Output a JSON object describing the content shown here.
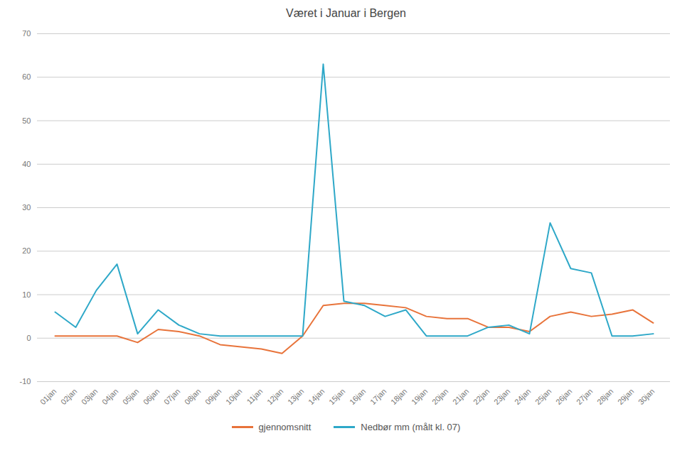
{
  "chart_data": {
    "type": "line",
    "title": "Været i Januar i Bergen",
    "categories": [
      "01jan",
      "02jan",
      "03jan",
      "04jan",
      "05jan",
      "06jan",
      "07jan",
      "08jan",
      "09jan",
      "10jan",
      "11jan",
      "12jan",
      "13jan",
      "14jan",
      "15jan",
      "16jan",
      "17jan",
      "18jan",
      "19jan",
      "20jan",
      "21jan",
      "22jan",
      "23jan",
      "24jan",
      "25jan",
      "26jan",
      "27jan",
      "28jan",
      "29jan",
      "30jan"
    ],
    "series": [
      {
        "name": "gjennomsnitt",
        "color": "#E8733A",
        "values": [
          0.5,
          0.5,
          0.5,
          0.5,
          -1.0,
          2.0,
          1.5,
          0.5,
          -1.5,
          -2.0,
          -2.5,
          -3.5,
          0.5,
          7.5,
          8.0,
          8.0,
          7.5,
          7.0,
          5.0,
          4.5,
          4.5,
          2.5,
          2.5,
          1.5,
          5.0,
          6.0,
          5.0,
          5.5,
          6.5,
          3.5
        ]
      },
      {
        "name": "Nedbør mm (målt kl. 07)",
        "color": "#2EA8C8",
        "values": [
          6.0,
          2.5,
          11.0,
          17.0,
          1.0,
          6.5,
          3.0,
          1.0,
          0.5,
          0.5,
          0.5,
          0.5,
          0.5,
          63.0,
          8.5,
          7.5,
          5.0,
          6.5,
          0.5,
          0.5,
          0.5,
          2.5,
          3.0,
          1.0,
          26.5,
          16.0,
          15.0,
          0.5,
          0.5,
          1.0
        ]
      }
    ],
    "ylim": [
      -10,
      70
    ],
    "yticks": [
      -10,
      0,
      10,
      20,
      30,
      40,
      50,
      60,
      70
    ],
    "grid": true,
    "legend": "bottom"
  }
}
